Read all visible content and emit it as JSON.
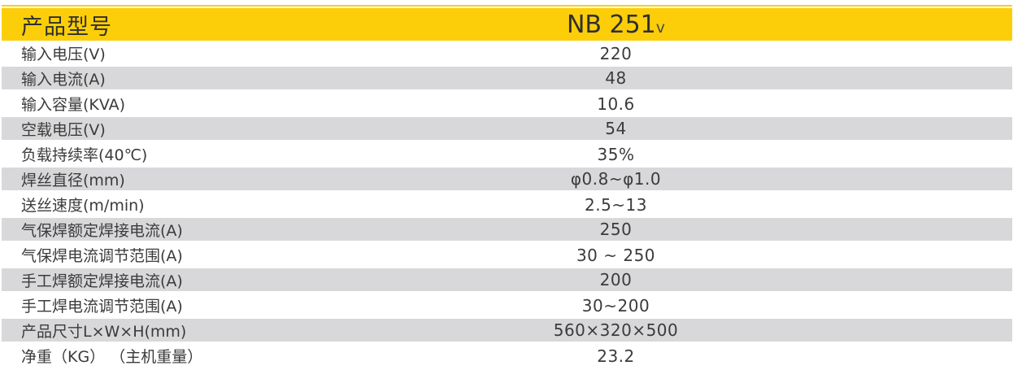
{
  "table": {
    "header": {
      "label": "产品型号",
      "model": "NB 251",
      "model_sub": "v"
    },
    "rows": [
      {
        "label": "输入电压(V)",
        "value": "220"
      },
      {
        "label": "输入电流(A)",
        "value": "48"
      },
      {
        "label": "输入容量(KVA)",
        "value": "10.6"
      },
      {
        "label": "空载电压(V)",
        "value": "54"
      },
      {
        "label": "负载持续率(40℃)",
        "value": "35%"
      },
      {
        "label": "焊丝直径(mm)",
        "value": "φ0.8~φ1.0"
      },
      {
        "label": "送丝速度(m/min)",
        "value": "2.5~13"
      },
      {
        "label": "气保焊额定焊接电流(A)",
        "value": "250"
      },
      {
        "label": "气保焊电流调节范围(A)",
        "value": "30 ~ 250"
      },
      {
        "label": "手工焊额定焊接电流(A)",
        "value": "200"
      },
      {
        "label": "手工焊电流调节范围(A)",
        "value": "30~200"
      },
      {
        "label": "产品尺寸L×W×H(mm)",
        "value": "560×320×500"
      },
      {
        "label": "净重（KG） （主机重量）",
        "value": "23.2"
      }
    ],
    "colors": {
      "header_bg": "#FCCE0A",
      "accent_line": "#FCCE0A",
      "alt_row_bg": "#D8D8DA",
      "text": "#3B3B3B"
    }
  }
}
